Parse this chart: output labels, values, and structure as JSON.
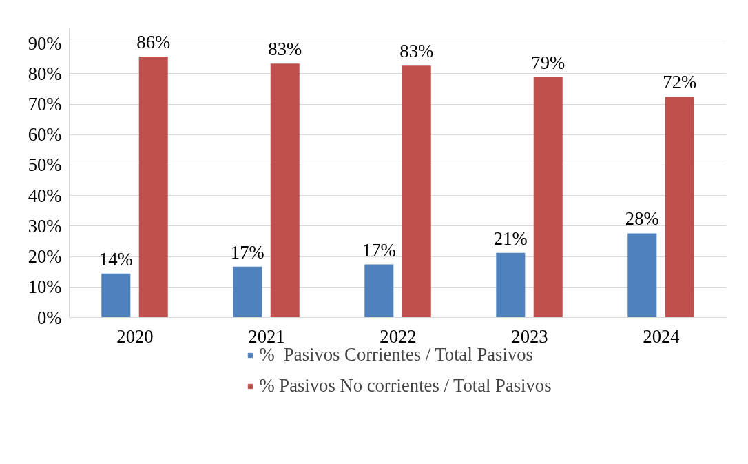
{
  "chart_data": {
    "type": "bar",
    "categories": [
      "2020",
      "2021",
      "2022",
      "2023",
      "2024"
    ],
    "series": [
      {
        "name": "%  Pasivos Corrientes / Total Pasivos",
        "color": "#4f81bd",
        "values": [
          14.4,
          16.7,
          17.4,
          21.2,
          27.6
        ],
        "value_labels": [
          "14%",
          "17%",
          "17%",
          "21%",
          "28%"
        ]
      },
      {
        "name": "% Pasivos No corrientes / Total Pasivos",
        "color": "#c0504d",
        "values": [
          85.6,
          83.3,
          82.6,
          78.8,
          72.4
        ],
        "value_labels": [
          "86%",
          "83%",
          "83%",
          "79%",
          "72%"
        ]
      }
    ],
    "ylim": [
      0,
      95
    ],
    "yticks": [
      {
        "value": 0,
        "label": "0%"
      },
      {
        "value": 10,
        "label": "10%"
      },
      {
        "value": 20,
        "label": "20%"
      },
      {
        "value": 30,
        "label": "30%"
      },
      {
        "value": 40,
        "label": "40%"
      },
      {
        "value": 50,
        "label": "50%"
      },
      {
        "value": 60,
        "label": "60%"
      },
      {
        "value": 70,
        "label": "70%"
      },
      {
        "value": 80,
        "label": "80%"
      },
      {
        "value": 90,
        "label": "90%"
      }
    ],
    "grid": "y",
    "legend": "bottom"
  }
}
